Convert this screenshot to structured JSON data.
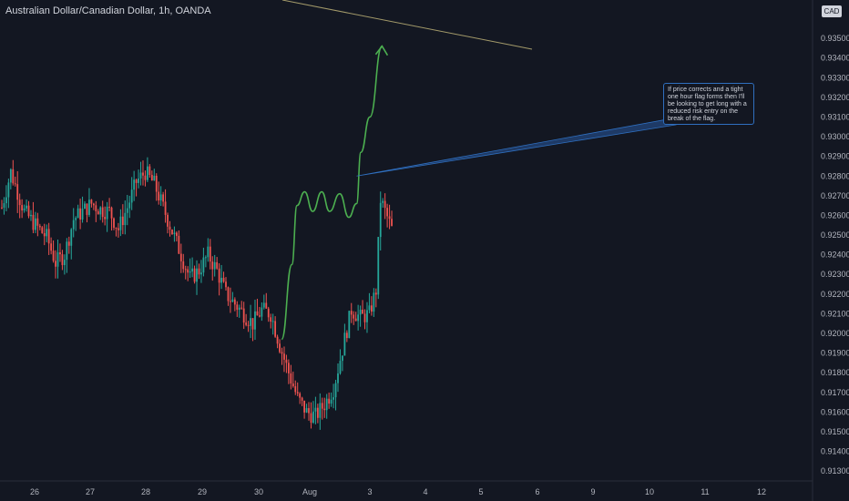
{
  "header": {
    "title": "Australian Dollar/Canadian Dollar, 1h, OANDA"
  },
  "currency_badge": "CAD",
  "annotation": {
    "text": "If price corrects and a tight one hour flag forms then I'll be looking to get long with a reduced risk entry on the break of the flag."
  },
  "colors": {
    "background": "#131722",
    "up": "#26a69a",
    "down": "#ef5350",
    "projection": "#4caf50",
    "trendline": "#a39a6a",
    "callout_border": "#2f6fbf",
    "axis_text": "#b2b5be"
  },
  "chart_data": {
    "type": "candlestick",
    "x_ticks": [
      "26",
      "27",
      "28",
      "29",
      "30",
      "Aug",
      "3",
      "4",
      "5",
      "6",
      "9",
      "10",
      "11",
      "12"
    ],
    "y_ticks": [
      "0.93500",
      "0.93400",
      "0.93300",
      "0.93200",
      "0.93100",
      "0.93000",
      "0.92900",
      "0.92800",
      "0.92700",
      "0.92600",
      "0.92500",
      "0.92400",
      "0.92300",
      "0.92200",
      "0.92100",
      "0.92000",
      "0.91900",
      "0.91800",
      "0.91700",
      "0.91600",
      "0.91500",
      "0.91400",
      "0.91300"
    ],
    "ylim": [
      0.9125,
      0.9363
    ],
    "price_path": [
      [
        0,
        0.9264
      ],
      [
        4,
        0.9282
      ],
      [
        10,
        0.9262
      ],
      [
        15,
        0.9255
      ],
      [
        20,
        0.9249
      ],
      [
        24,
        0.9236
      ],
      [
        28,
        0.924
      ],
      [
        32,
        0.9258
      ],
      [
        36,
        0.9262
      ],
      [
        40,
        0.9266
      ],
      [
        44,
        0.9263
      ],
      [
        48,
        0.9262
      ],
      [
        52,
        0.9253
      ],
      [
        56,
        0.9264
      ],
      [
        60,
        0.9277
      ],
      [
        64,
        0.9282
      ],
      [
        68,
        0.9276
      ],
      [
        72,
        0.9264
      ],
      [
        76,
        0.9252
      ],
      [
        80,
        0.924
      ],
      [
        84,
        0.9228
      ],
      [
        88,
        0.9232
      ],
      [
        92,
        0.924
      ],
      [
        96,
        0.9232
      ],
      [
        100,
        0.922
      ],
      [
        104,
        0.9215
      ],
      [
        108,
        0.921
      ],
      [
        112,
        0.9205
      ],
      [
        116,
        0.9212
      ],
      [
        120,
        0.921
      ],
      [
        124,
        0.9194
      ],
      [
        128,
        0.918
      ],
      [
        132,
        0.9167
      ],
      [
        136,
        0.916
      ],
      [
        140,
        0.9158
      ],
      [
        144,
        0.9164
      ],
      [
        148,
        0.9172
      ],
      [
        152,
        0.9192
      ],
      [
        156,
        0.9212
      ],
      [
        160,
        0.9208
      ],
      [
        164,
        0.921
      ],
      [
        167,
        0.9222
      ],
      [
        169,
        0.9268
      ],
      [
        171,
        0.9262
      ],
      [
        174,
        0.9253
      ]
    ],
    "candles_hours_per_day": 24,
    "hour0_day": 25.55,
    "projection_path": [
      [
        4.45,
        0.9197
      ],
      [
        4.65,
        0.9235
      ],
      [
        4.75,
        0.9265
      ],
      [
        4.9,
        0.9272
      ],
      [
        5.05,
        0.9262
      ],
      [
        5.2,
        0.9272
      ],
      [
        5.33,
        0.9262
      ],
      [
        5.5,
        0.9271
      ],
      [
        5.65,
        0.9259
      ],
      [
        5.78,
        0.9266
      ],
      [
        5.85,
        0.9292
      ],
      [
        6.0,
        0.931
      ],
      [
        6.22,
        0.9346
      ]
    ],
    "callout_anchor": [
      5.78,
      0.928
    ],
    "trendline": {
      "from": [
        30.05,
        0.9369
      ],
      "to": [
        5.72,
        0.9343
      ]
    }
  }
}
